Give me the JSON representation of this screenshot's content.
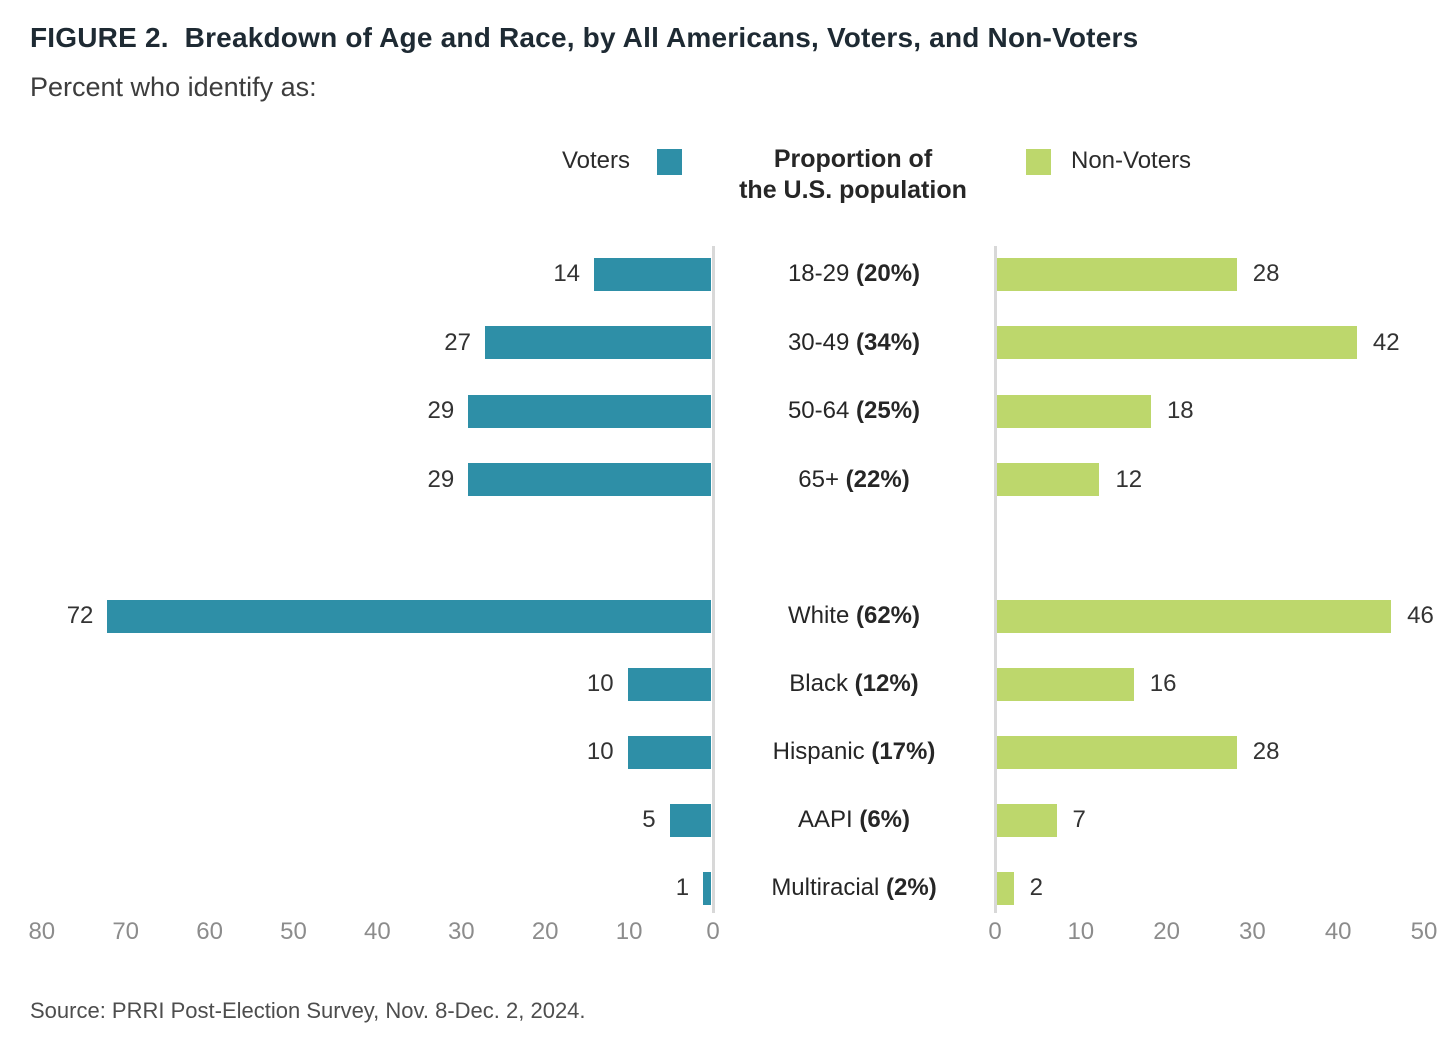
{
  "figure": {
    "title": "FIGURE 2.  Breakdown of Age and Race, by All Americans, Voters, and Non-Voters",
    "subtitle": "Percent who identify as:",
    "source": "Source: PRRI Post-Election Survey, Nov. 8-Dec. 2, 2024."
  },
  "legend": {
    "voters_label": "Voters",
    "center_label_line1": "Proportion of",
    "center_label_line2": "the U.S. population",
    "non_voters_label": "Non-Voters"
  },
  "colors": {
    "voters": "#2E8FA7",
    "non_voters": "#BDD76C",
    "axis_line": "#D8D8D8",
    "tick_text": "#8C8C8C",
    "value_text": "#333333",
    "title_text": "#1E2A33"
  },
  "chart_data": {
    "type": "bar",
    "orientation": "horizontal-diverging",
    "title": "Breakdown of Age and Race, by All Americans, Voters, and Non-Voters",
    "subtitle": "Percent who identify as:",
    "legend_position": "top",
    "grid": false,
    "series_names": [
      "Voters",
      "Non-Voters"
    ],
    "groups": [
      {
        "name": "age",
        "rows": [
          {
            "label": "18-29",
            "population_share": "(20%)",
            "voters": 14,
            "non_voters": 28
          },
          {
            "label": "30-49",
            "population_share": "(34%)",
            "voters": 27,
            "non_voters": 42
          },
          {
            "label": "50-64",
            "population_share": "(25%)",
            "voters": 29,
            "non_voters": 18
          },
          {
            "label": "65+",
            "population_share": "(22%)",
            "voters": 29,
            "non_voters": 12
          }
        ]
      },
      {
        "name": "race",
        "rows": [
          {
            "label": "White",
            "population_share": "(62%)",
            "voters": 72,
            "non_voters": 46
          },
          {
            "label": "Black",
            "population_share": "(12%)",
            "voters": 10,
            "non_voters": 16
          },
          {
            "label": "Hispanic",
            "population_share": "(17%)",
            "voters": 10,
            "non_voters": 28
          },
          {
            "label": "AAPI",
            "population_share": "(6%)",
            "voters": 5,
            "non_voters": 7
          },
          {
            "label": "Multiracial",
            "population_share": "(2%)",
            "voters": 1,
            "non_voters": 2
          }
        ]
      }
    ],
    "left_axis": {
      "series": "Voters",
      "ticks": [
        80,
        70,
        60,
        50,
        40,
        30,
        20,
        10,
        0
      ],
      "max": 80,
      "direction": "right-to-left"
    },
    "right_axis": {
      "series": "Non-Voters",
      "ticks": [
        0,
        10,
        20,
        30,
        40,
        50
      ],
      "max": 50,
      "direction": "left-to-right"
    }
  }
}
